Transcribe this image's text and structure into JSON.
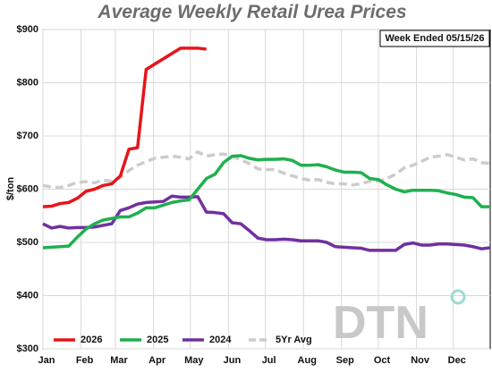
{
  "chart_data": {
    "type": "line",
    "title": "Average Weekly Retail Urea Prices",
    "y_label": "$/ton",
    "annotation": "Week Ended 05/15/26",
    "logo": "DTN",
    "xlim": [
      0,
      52
    ],
    "ylim": [
      300,
      900
    ],
    "xticks": [
      {
        "value": 0,
        "label": "Jan"
      },
      {
        "value": 4.43,
        "label": "Feb"
      },
      {
        "value": 8.43,
        "label": "Mar"
      },
      {
        "value": 12.86,
        "label": "Apr"
      },
      {
        "value": 17.14,
        "label": "May"
      },
      {
        "value": 21.57,
        "label": "Jun"
      },
      {
        "value": 25.86,
        "label": "Jul"
      },
      {
        "value": 30.29,
        "label": "Aug"
      },
      {
        "value": 34.71,
        "label": "Sep"
      },
      {
        "value": 39,
        "label": "Oct"
      },
      {
        "value": 43.43,
        "label": "Nov"
      },
      {
        "value": 47.71,
        "label": "Dec"
      }
    ],
    "yticks": [
      {
        "value": 300,
        "label": "$300"
      },
      {
        "value": 400,
        "label": "$400"
      },
      {
        "value": 500,
        "label": "$500"
      },
      {
        "value": 600,
        "label": "$600"
      },
      {
        "value": 700,
        "label": "$700"
      },
      {
        "value": 800,
        "label": "$800"
      },
      {
        "value": 900,
        "label": "$900"
      }
    ],
    "grid": true,
    "legend": "bottom-left",
    "x": [
      0,
      1,
      2,
      3,
      4,
      5,
      6,
      7,
      8,
      9,
      10,
      11,
      12,
      13,
      14,
      15,
      16,
      17,
      18,
      19,
      20,
      21,
      22,
      23,
      24,
      25,
      26,
      27,
      28,
      29,
      30,
      31,
      32,
      33,
      34,
      35,
      36,
      37,
      38,
      39,
      40,
      41,
      42,
      43,
      44,
      45,
      46,
      47,
      48,
      49,
      50,
      51,
      52
    ],
    "series": [
      {
        "name": "2026",
        "color": "#e8141b",
        "dash": false,
        "values": [
          567,
          568,
          573,
          575,
          583,
          596,
          600,
          607,
          610,
          625,
          675,
          678,
          825,
          835,
          845,
          855,
          865,
          865,
          865,
          863,
          null,
          null,
          null,
          null,
          null,
          null,
          null,
          null,
          null,
          null,
          null,
          null,
          null,
          null,
          null,
          null,
          null,
          null,
          null,
          null,
          null,
          null,
          null,
          null,
          null,
          null,
          null,
          null,
          null,
          null,
          null,
          null,
          null
        ]
      },
      {
        "name": "2025",
        "color": "#1fb04f",
        "dash": false,
        "values": [
          490,
          491,
          492,
          493,
          510,
          525,
          535,
          542,
          545,
          548,
          548,
          555,
          565,
          565,
          570,
          575,
          578,
          580,
          600,
          620,
          628,
          650,
          662,
          663,
          658,
          655,
          656,
          656,
          657,
          654,
          645,
          645,
          646,
          642,
          636,
          632,
          632,
          631,
          620,
          618,
          608,
          600,
          595,
          598,
          598,
          598,
          597,
          593,
          590,
          585,
          584,
          567,
          567
        ]
      },
      {
        "name": "2024",
        "color": "#7030a0",
        "dash": false,
        "values": [
          535,
          527,
          530,
          527,
          528,
          528,
          529,
          532,
          535,
          560,
          565,
          572,
          575,
          576,
          577,
          587,
          585,
          585,
          586,
          557,
          556,
          554,
          537,
          535,
          522,
          508,
          505,
          505,
          506,
          505,
          503,
          503,
          503,
          500,
          492,
          491,
          490,
          489,
          485,
          485,
          485,
          485,
          496,
          499,
          495,
          495,
          497,
          497,
          496,
          495,
          492,
          488,
          490
        ]
      },
      {
        "name": "5Yr Avg",
        "color": "#cccccc",
        "dash": true,
        "values": [
          607,
          604,
          603,
          607,
          613,
          614,
          612,
          617,
          615,
          622,
          635,
          645,
          652,
          658,
          660,
          662,
          660,
          657,
          670,
          662,
          665,
          666,
          662,
          655,
          648,
          638,
          637,
          637,
          630,
          625,
          620,
          617,
          618,
          613,
          610,
          610,
          608,
          610,
          615,
          615,
          620,
          628,
          640,
          645,
          652,
          660,
          662,
          665,
          660,
          655,
          657,
          650,
          648
        ]
      }
    ]
  }
}
